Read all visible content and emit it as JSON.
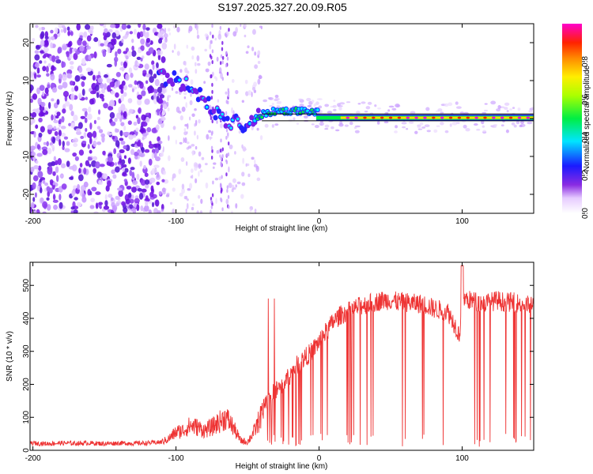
{
  "figure_title": "S197.2025.327.20.09.R05",
  "chart_data": [
    {
      "type": "heatmap",
      "title": "",
      "xlabel": "Height of straight line (km)",
      "ylabel": "Frequency (Hz)",
      "xlim": [
        -202,
        150
      ],
      "ylim": [
        -25,
        25
      ],
      "xticks": [
        -200,
        -100,
        0,
        100
      ],
      "yticks": [
        -20,
        -10,
        0,
        10,
        20
      ],
      "xtick_labels": [
        "-200",
        "-100",
        "0",
        "100"
      ],
      "ytick_labels": [
        "-20",
        "-10",
        "0",
        "10",
        "20"
      ],
      "colorbar": {
        "label": "Normalized spectral amplitude",
        "range": [
          0,
          1
        ],
        "ticks": [
          0.0,
          0.2,
          0.4,
          0.6,
          0.8
        ],
        "tick_labels": [
          "0.0",
          "0.2",
          "0.4",
          "0.6",
          "0.8"
        ],
        "colormap": "rainbow (white-violet-blue-cyan-green-yellow-red-magenta)"
      },
      "ridge": {
        "description": "Dominant frequency track (Hz) vs height (km)",
        "x": [
          -110,
          -100,
          -90,
          -80,
          -75,
          -70,
          -65,
          -60,
          -55,
          -50,
          -45,
          -40,
          -30,
          -20,
          -10,
          0,
          10,
          20,
          30,
          50,
          75,
          100,
          125,
          150
        ],
        "y": [
          11,
          10,
          8,
          5,
          2,
          1,
          -1,
          -1,
          -2,
          -1,
          0,
          1,
          2,
          2,
          2,
          1.5,
          1,
          0.5,
          0.3,
          0.2,
          0.2,
          0.2,
          0.2,
          0.2
        ]
      }
    },
    {
      "type": "line",
      "title": "",
      "xlabel": "Height of straight line (km)",
      "ylabel": "SNR (10 * v/v)",
      "xlim": [
        -202,
        150
      ],
      "ylim": [
        0,
        570
      ],
      "xticks": [
        -200,
        -100,
        0,
        100
      ],
      "yticks": [
        0,
        100,
        200,
        300,
        400,
        500
      ],
      "xtick_labels": [
        "-200",
        "-100",
        "0",
        "100"
      ],
      "ytick_labels": [
        "0",
        "100",
        "200",
        "300",
        "400",
        "500"
      ],
      "series": [
        {
          "name": "SNR",
          "color": "#ee3333",
          "x": [
            -202,
            -190,
            -180,
            -170,
            -160,
            -150,
            -140,
            -130,
            -120,
            -110,
            -105,
            -100,
            -95,
            -90,
            -85,
            -80,
            -75,
            -70,
            -65,
            -60,
            -55,
            -50,
            -45,
            -40,
            -38,
            -35,
            -30,
            -25,
            -20,
            -15,
            -10,
            -5,
            0,
            5,
            10,
            15,
            20,
            25,
            30,
            35,
            40,
            45,
            50,
            55,
            60,
            65,
            70,
            75,
            80,
            85,
            90,
            95,
            98,
            100,
            102,
            105,
            110,
            115,
            120,
            125,
            130,
            135,
            140,
            145,
            150
          ],
          "y": [
            22,
            20,
            22,
            21,
            22,
            20,
            22,
            21,
            22,
            25,
            35,
            55,
            60,
            75,
            70,
            60,
            70,
            85,
            100,
            70,
            30,
            25,
            60,
            110,
            140,
            160,
            180,
            200,
            230,
            260,
            280,
            300,
            330,
            360,
            390,
            410,
            420,
            430,
            440,
            445,
            450,
            455,
            455,
            450,
            450,
            445,
            445,
            440,
            430,
            425,
            420,
            380,
            350,
            440,
            460,
            455,
            450,
            445,
            450,
            455,
            448,
            450,
            445,
            440,
            440
          ]
        }
      ],
      "annotations": [
        "Peak near 100 km about 560",
        "Spike near -32 km about 465"
      ]
    }
  ]
}
